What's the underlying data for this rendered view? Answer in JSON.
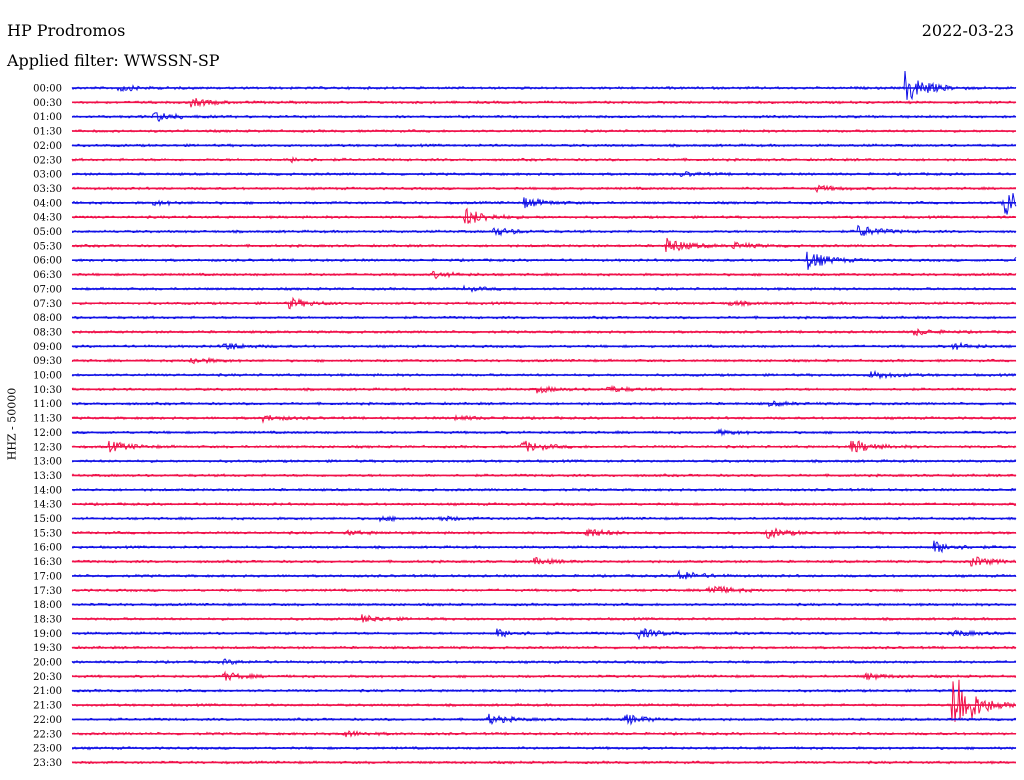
{
  "header": {
    "station": "HP Prodromos",
    "date": "2022-03-23",
    "filter": "Applied filter: WWSSN-SP"
  },
  "colors": {
    "trace_a": "#1010e6",
    "trace_b": "#f0104a"
  },
  "chart_data": {
    "type": "line",
    "title": "HP Prodromos",
    "subtitle": "Applied filter: WWSSN-SP",
    "ylabel": "HHZ - 50000",
    "xlabel": "",
    "grid": false,
    "legend": "none",
    "rows": [
      "00:00",
      "00:30",
      "01:00",
      "01:30",
      "02:00",
      "02:30",
      "03:00",
      "03:30",
      "04:00",
      "04:30",
      "05:00",
      "05:30",
      "06:00",
      "06:30",
      "07:00",
      "07:30",
      "08:00",
      "08:30",
      "09:00",
      "09:30",
      "10:00",
      "10:30",
      "11:00",
      "11:30",
      "12:00",
      "12:30",
      "13:00",
      "13:30",
      "14:00",
      "14:30",
      "15:00",
      "15:30",
      "16:00",
      "16:30",
      "17:00",
      "17:30",
      "18:00",
      "18:30",
      "19:00",
      "19:30",
      "20:00",
      "20:30",
      "21:00",
      "21:30",
      "22:00",
      "22:30",
      "23:00",
      "23:30"
    ],
    "row_minutes": 30,
    "events": [
      {
        "row": "00:00",
        "minute": 1.5,
        "amplitude": 3
      },
      {
        "row": "00:00",
        "minute": 26.5,
        "amplitude": 16
      },
      {
        "row": "00:30",
        "minute": 3.8,
        "amplitude": 4
      },
      {
        "row": "01:00",
        "minute": 2.6,
        "amplitude": 5
      },
      {
        "row": "02:30",
        "minute": 7.0,
        "amplitude": 2
      },
      {
        "row": "03:00",
        "minute": 19.4,
        "amplitude": 2
      },
      {
        "row": "03:30",
        "minute": 23.6,
        "amplitude": 3
      },
      {
        "row": "04:00",
        "minute": 2.6,
        "amplitude": 2
      },
      {
        "row": "04:00",
        "minute": 14.4,
        "amplitude": 5
      },
      {
        "row": "04:00",
        "minute": 29.6,
        "amplitude": 16
      },
      {
        "row": "04:30",
        "minute": 12.5,
        "amplitude": 9
      },
      {
        "row": "05:00",
        "minute": 13.4,
        "amplitude": 4
      },
      {
        "row": "05:00",
        "minute": 25.0,
        "amplitude": 6
      },
      {
        "row": "05:30",
        "minute": 18.9,
        "amplitude": 8
      },
      {
        "row": "05:30",
        "minute": 21.0,
        "amplitude": 3
      },
      {
        "row": "06:00",
        "minute": 23.4,
        "amplitude": 9
      },
      {
        "row": "06:00",
        "minute": 30.0,
        "amplitude": 3
      },
      {
        "row": "06:30",
        "minute": 11.5,
        "amplitude": 3
      },
      {
        "row": "07:00",
        "minute": 12.5,
        "amplitude": 2
      },
      {
        "row": "07:30",
        "minute": 6.9,
        "amplitude": 5
      },
      {
        "row": "07:30",
        "minute": 20.9,
        "amplitude": 2
      },
      {
        "row": "08:30",
        "minute": 26.8,
        "amplitude": 3
      },
      {
        "row": "09:00",
        "minute": 4.8,
        "amplitude": 4
      },
      {
        "row": "09:00",
        "minute": 28.0,
        "amplitude": 3
      },
      {
        "row": "09:30",
        "minute": 3.8,
        "amplitude": 3
      },
      {
        "row": "10:00",
        "minute": 25.4,
        "amplitude": 4
      },
      {
        "row": "10:30",
        "minute": 14.8,
        "amplitude": 3
      },
      {
        "row": "10:30",
        "minute": 17.0,
        "amplitude": 3
      },
      {
        "row": "11:00",
        "minute": 22.2,
        "amplitude": 2
      },
      {
        "row": "11:30",
        "minute": 6.1,
        "amplitude": 3
      },
      {
        "row": "11:30",
        "minute": 12.2,
        "amplitude": 2
      },
      {
        "row": "12:00",
        "minute": 20.6,
        "amplitude": 2
      },
      {
        "row": "12:30",
        "minute": 1.2,
        "amplitude": 5
      },
      {
        "row": "12:30",
        "minute": 14.3,
        "amplitude": 6
      },
      {
        "row": "12:30",
        "minute": 24.8,
        "amplitude": 7
      },
      {
        "row": "15:00",
        "minute": 9.8,
        "amplitude": 2
      },
      {
        "row": "15:00",
        "minute": 11.7,
        "amplitude": 2
      },
      {
        "row": "15:30",
        "minute": 8.7,
        "amplitude": 2
      },
      {
        "row": "15:30",
        "minute": 16.3,
        "amplitude": 5
      },
      {
        "row": "15:30",
        "minute": 22.1,
        "amplitude": 5
      },
      {
        "row": "16:00",
        "minute": 27.4,
        "amplitude": 6
      },
      {
        "row": "16:30",
        "minute": 14.7,
        "amplitude": 3
      },
      {
        "row": "16:30",
        "minute": 28.6,
        "amplitude": 5
      },
      {
        "row": "17:00",
        "minute": 19.3,
        "amplitude": 5
      },
      {
        "row": "17:30",
        "minute": 20.2,
        "amplitude": 6
      },
      {
        "row": "18:30",
        "minute": 9.2,
        "amplitude": 4
      },
      {
        "row": "19:00",
        "minute": 13.5,
        "amplitude": 4
      },
      {
        "row": "19:00",
        "minute": 18.0,
        "amplitude": 5
      },
      {
        "row": "19:00",
        "minute": 28.0,
        "amplitude": 3
      },
      {
        "row": "20:00",
        "minute": 4.8,
        "amplitude": 2
      },
      {
        "row": "20:30",
        "minute": 4.8,
        "amplitude": 4
      },
      {
        "row": "20:30",
        "minute": 25.2,
        "amplitude": 3
      },
      {
        "row": "21:30",
        "minute": 28.0,
        "amplitude": 40
      },
      {
        "row": "22:00",
        "minute": 13.2,
        "amplitude": 5
      },
      {
        "row": "22:00",
        "minute": 17.6,
        "amplitude": 5
      },
      {
        "row": "22:30",
        "minute": 8.6,
        "amplitude": 3
      }
    ]
  }
}
